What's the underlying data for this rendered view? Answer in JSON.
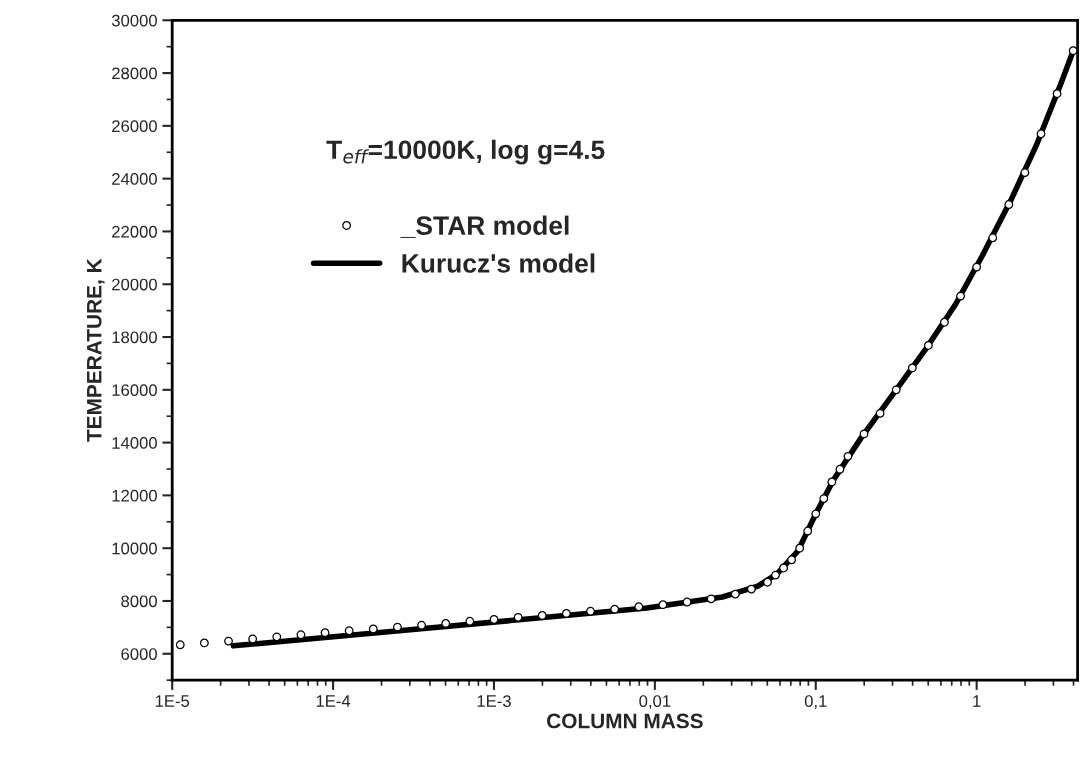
{
  "chart_data": {
    "type": "scatter",
    "xlabel": "COLUMN MASS",
    "ylabel": "TEMPERATURE, K",
    "annotations": [
      "T$_{eff}$=10000K, log g=4.5"
    ],
    "log": "x",
    "grid": false,
    "legend": "top left",
    "xlim": [
      1e-05,
      4.24
    ],
    "ylim": [
      5000,
      30000
    ],
    "xticks": [
      {
        "value": 1e-05,
        "label": "1E-5"
      },
      {
        "value": 0.0001,
        "label": "1E-4"
      },
      {
        "value": 0.001,
        "label": "1E-3"
      },
      {
        "value": 0.01,
        "label": "0,01"
      },
      {
        "value": 0.1,
        "label": "0,1"
      },
      1
    ],
    "yticks": [
      6000,
      8000,
      10000,
      12000,
      14000,
      16000,
      18000,
      20000,
      22000,
      24000,
      26000,
      28000,
      30000
    ],
    "series": [
      {
        "name": "_STAR model",
        "marker": "circle",
        "color": "#000000",
        "x": [
          1.122e-05,
          1.585e-05,
          2.239e-05,
          3.162e-05,
          4.467e-05,
          6.31e-05,
          8.913e-05,
          0.0001259,
          0.0001778,
          0.0002512,
          0.0003548,
          0.0005012,
          0.0007079,
          0.001,
          0.001413,
          0.001995,
          0.002818,
          0.003981,
          0.005623,
          0.007943,
          0.01122,
          0.01585,
          0.02239,
          0.03162,
          0.03981,
          0.05012,
          0.05623,
          0.0631,
          0.07079,
          0.07943,
          0.08913,
          0.1,
          0.1122,
          0.1259,
          0.1413,
          0.1585,
          0.1995,
          0.2512,
          0.3162,
          0.3981,
          0.5012,
          0.631,
          0.7943,
          1.0,
          1.259,
          1.585,
          1.995,
          2.512,
          3.162,
          3.981
        ],
        "values": [
          6340,
          6410,
          6480,
          6560,
          6640,
          6720,
          6800,
          6870,
          6940,
          7010,
          7080,
          7150,
          7230,
          7300,
          7380,
          7450,
          7530,
          7610,
          7690,
          7780,
          7860,
          7960,
          8080,
          8260,
          8450,
          8710,
          8980,
          9250,
          9560,
          10000,
          10650,
          11300,
          11880,
          12510,
          12990,
          13480,
          14330,
          15110,
          16000,
          16830,
          17680,
          18560,
          19550,
          20650,
          21760,
          23020,
          24230,
          25700,
          27220,
          28850
        ]
      },
      {
        "name": "Kurucz's model",
        "type": "line",
        "line_style": "solid",
        "color": "#000000",
        "x": [
          2.4e-05,
          0.0003388,
          0.008913,
          0.0263,
          0.04365,
          0.05754,
          0.07762,
          0.1,
          0.1288,
          0.1905,
          0.3236,
          0.4898,
          0.7413,
          1.084,
          1.622,
          2.344,
          3.388,
          4.018
        ],
        "values": [
          6300,
          6940,
          7730,
          8150,
          8560,
          9030,
          9900,
          11300,
          12580,
          14160,
          16080,
          17600,
          19250,
          21080,
          23150,
          25250,
          27700,
          28900
        ]
      }
    ]
  }
}
